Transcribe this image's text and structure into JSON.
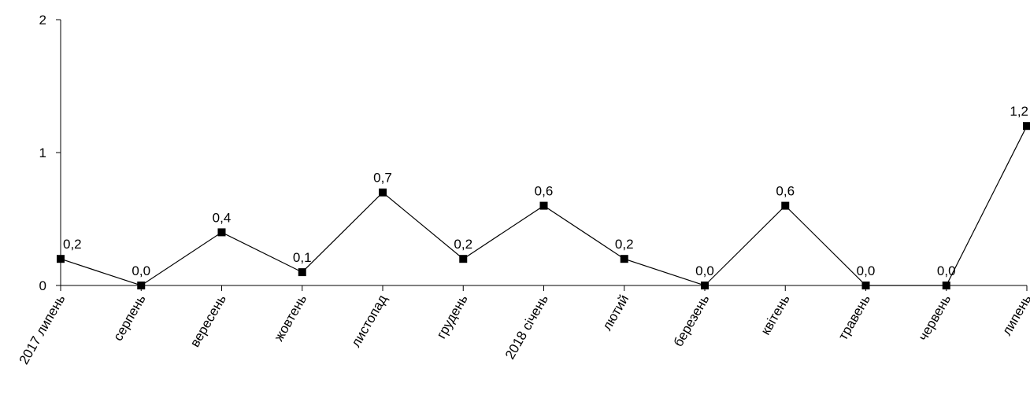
{
  "chart_data": {
    "type": "line",
    "categories": [
      "2017 липень",
      "серпень",
      "вересень",
      "жовтень",
      "листопад",
      "грудень",
      "2018 січень",
      "лютий",
      "березень",
      "квітень",
      "травень",
      "червень",
      "липень"
    ],
    "values": [
      0.2,
      0.0,
      0.4,
      0.1,
      0.7,
      0.2,
      0.6,
      0.2,
      0.0,
      0.6,
      0.0,
      0.0,
      1.2
    ],
    "data_labels": [
      "0,2",
      "0,0",
      "0,4",
      "0,1",
      "0,7",
      "0,2",
      "0,6",
      "0,2",
      "0,0",
      "0,6",
      "0,0",
      "0,0",
      "1,2"
    ],
    "yticks": [
      0,
      1,
      2
    ],
    "ytick_labels": [
      "0",
      "1",
      "2"
    ],
    "ylim": [
      0,
      2
    ],
    "marker": "square",
    "line_color": "#000000",
    "grid": false,
    "legend": "none"
  }
}
